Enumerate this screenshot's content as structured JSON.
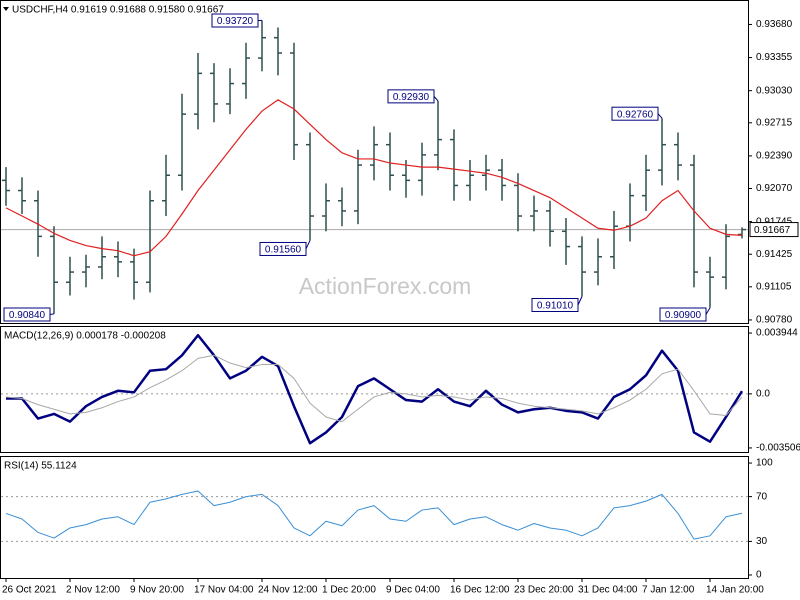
{
  "chart_data": [
    {
      "type": "ohlc",
      "title": "USDCHF,H4 0.91619 0.91688 0.91580 0.91667",
      "watermark": "ActionForex.com",
      "color": "#2f4f4f",
      "categories": [
        "26 Oct 2021",
        null,
        null,
        null,
        "2 Nov 12:00",
        null,
        null,
        null,
        "9 Nov 20:00",
        null,
        null,
        null,
        "17 Nov 04:00",
        null,
        null,
        null,
        "24 Nov 12:00",
        null,
        null,
        null,
        "1 Dec 20:00",
        null,
        null,
        null,
        "9 Dec 04:00",
        null,
        null,
        null,
        "16 Dec 12:00",
        null,
        null,
        null,
        "23 Dec 20:00",
        null,
        null,
        null,
        "31 Dec 04:00",
        null,
        null,
        null,
        "7 Jan 12:00",
        null,
        null,
        null,
        "14 Jan 20:00",
        null,
        null
      ],
      "open": [
        0.9215,
        0.9205,
        0.9195,
        0.916,
        0.9115,
        0.9125,
        0.913,
        0.914,
        0.9135,
        0.9115,
        0.9195,
        0.922,
        0.928,
        0.932,
        0.929,
        0.931,
        0.9335,
        0.9355,
        0.934,
        0.925,
        0.918,
        0.9195,
        0.9185,
        0.923,
        0.925,
        0.922,
        0.9215,
        0.924,
        0.9255,
        0.921,
        0.922,
        0.9225,
        0.921,
        0.918,
        0.9185,
        0.9165,
        0.915,
        0.9125,
        0.914,
        0.917,
        0.92,
        0.9225,
        0.925,
        0.923,
        0.9125,
        0.912,
        0.91619
      ],
      "high": [
        0.9228,
        0.9218,
        0.9205,
        0.917,
        0.914,
        0.9142,
        0.916,
        0.9155,
        0.9148,
        0.9205,
        0.924,
        0.93,
        0.934,
        0.933,
        0.9325,
        0.935,
        0.9372,
        0.9365,
        0.935,
        0.9262,
        0.9212,
        0.9208,
        0.9245,
        0.9268,
        0.9262,
        0.9235,
        0.9252,
        0.9293,
        0.9265,
        0.9235,
        0.924,
        0.9236,
        0.9222,
        0.92,
        0.9195,
        0.9178,
        0.916,
        0.9158,
        0.9185,
        0.9212,
        0.924,
        0.9276,
        0.9262,
        0.924,
        0.914,
        0.9172,
        0.91688
      ],
      "low": [
        0.919,
        0.9182,
        0.914,
        0.9084,
        0.9102,
        0.911,
        0.9118,
        0.912,
        0.9098,
        0.9105,
        0.918,
        0.9205,
        0.9265,
        0.9272,
        0.928,
        0.9295,
        0.9322,
        0.9318,
        0.9235,
        0.9156,
        0.9165,
        0.917,
        0.9172,
        0.9215,
        0.9205,
        0.9198,
        0.92,
        0.9225,
        0.9195,
        0.9195,
        0.9205,
        0.9195,
        0.9165,
        0.9165,
        0.915,
        0.9132,
        0.9101,
        0.9112,
        0.9128,
        0.9155,
        0.9185,
        0.921,
        0.9215,
        0.911,
        0.909,
        0.9108,
        0.9158
      ],
      "close": [
        0.9205,
        0.9195,
        0.916,
        0.9115,
        0.9125,
        0.913,
        0.914,
        0.9135,
        0.9115,
        0.9195,
        0.922,
        0.928,
        0.932,
        0.929,
        0.931,
        0.9335,
        0.9355,
        0.934,
        0.925,
        0.918,
        0.9195,
        0.9185,
        0.923,
        0.925,
        0.922,
        0.9215,
        0.924,
        0.9255,
        0.921,
        0.922,
        0.9225,
        0.921,
        0.918,
        0.9185,
        0.9165,
        0.915,
        0.9125,
        0.914,
        0.917,
        0.92,
        0.9225,
        0.925,
        0.923,
        0.9125,
        0.912,
        0.916,
        0.91667
      ],
      "overlays": [
        {
          "color": "#e02020",
          "values": [
            0.9188,
            0.918,
            0.9172,
            0.9163,
            0.9156,
            0.9151,
            0.9148,
            0.9146,
            0.9141,
            0.9145,
            0.916,
            0.9182,
            0.9205,
            0.9225,
            0.9245,
            0.9265,
            0.9283,
            0.9294,
            0.9285,
            0.927,
            0.9255,
            0.9242,
            0.9236,
            0.9236,
            0.9232,
            0.923,
            0.9228,
            0.9228,
            0.9226,
            0.9224,
            0.9222,
            0.9218,
            0.9212,
            0.9205,
            0.9198,
            0.9188,
            0.9178,
            0.9168,
            0.9166,
            0.917,
            0.9178,
            0.9195,
            0.9205,
            0.9185,
            0.9168,
            0.9162,
            0.9161
          ]
        }
      ],
      "annotations": [
        {
          "value": 0.9372,
          "label": "0.93720"
        },
        {
          "value": 0.9293,
          "label": "0.92930"
        },
        {
          "value": 0.9276,
          "label": "0.92760"
        },
        {
          "value": 0.9156,
          "label": "0.91560"
        },
        {
          "value": 0.9101,
          "label": "0.91010"
        },
        {
          "value": 0.909,
          "label": "0.90900"
        },
        {
          "value": 0.9084,
          "label": "0.90840"
        }
      ],
      "ylim": [
        0.9075,
        0.9392
      ],
      "yticks": [
        {
          "value": 0.9368,
          "label": "0.93680"
        },
        {
          "value": 0.93355,
          "label": "0.93355"
        },
        {
          "value": 0.9303,
          "label": "0.93030"
        },
        {
          "value": 0.92715,
          "label": "0.92715"
        },
        {
          "value": 0.9239,
          "label": "0.92390"
        },
        {
          "value": 0.9207,
          "label": "0.92070"
        },
        {
          "value": 0.91745,
          "label": "0.91745"
        },
        {
          "value": 0.91425,
          "label": "0.91425"
        },
        {
          "value": 0.91105,
          "label": "0.91105"
        },
        {
          "value": 0.9078,
          "label": "0.90780"
        }
      ]
    },
    {
      "type": "line",
      "title": "MACD(12,26,9) 0.000178 -0.000208",
      "series": [
        {
          "color": "#000080",
          "width": 2.5,
          "values": [
            -0.0003,
            -0.0003,
            -0.0016,
            -0.0013,
            -0.0018,
            -0.0008,
            -0.0002,
            0.0002,
            0.0001,
            0.0015,
            0.0016,
            0.0025,
            0.0038,
            0.0025,
            0.001,
            0.0015,
            0.0024,
            0.0018,
            -0.0008,
            -0.0032,
            -0.0025,
            -0.0015,
            0.0005,
            0.001,
            0.0003,
            -0.0004,
            -0.0005,
            0.0003,
            -0.0005,
            -0.0008,
            0.0002,
            -0.0007,
            -0.0012,
            -0.001,
            -0.0009,
            -0.0011,
            -0.0012,
            -0.0016,
            -0.0002,
            0.0003,
            0.0012,
            0.0028,
            0.0015,
            -0.0025,
            -0.0031,
            -0.0015,
            0.000178
          ]
        },
        {
          "color": "#a8a8a8",
          "width": 1,
          "values": [
            -0.0002,
            -0.0003,
            -0.0007,
            -0.001,
            -0.0013,
            -0.0012,
            -0.0009,
            -0.0005,
            -0.0002,
            0.0004,
            0.0009,
            0.0015,
            0.0023,
            0.0025,
            0.002,
            0.0017,
            0.0019,
            0.0019,
            0.001,
            -0.0006,
            -0.0015,
            -0.0018,
            -0.001,
            -0.0002,
            0.0001,
            0.0,
            -0.0002,
            -0.0001,
            -0.0002,
            -0.0004,
            -0.0002,
            -0.0003,
            -0.0006,
            -0.0008,
            -0.0009,
            -0.001,
            -0.0011,
            -0.0013,
            -0.0009,
            -0.0004,
            0.0003,
            0.0013,
            0.0016,
            0.0002,
            -0.0013,
            -0.0014,
            -0.000208
          ]
        }
      ],
      "levels": [
        0
      ],
      "ylim": [
        -0.00377,
        0.0044
      ],
      "yticks": [
        0.003944,
        {
          "value": 0,
          "label": "0.0"
        },
        -0.003506
      ]
    },
    {
      "type": "line",
      "title": "RSI(14) 55.1124",
      "series": [
        {
          "color": "#3a8fd6",
          "width": 1,
          "values": [
            55,
            50,
            38,
            33,
            42,
            45,
            50,
            52,
            45,
            65,
            68,
            72,
            75,
            62,
            65,
            70,
            72,
            62,
            42,
            35,
            48,
            44,
            58,
            62,
            50,
            48,
            58,
            60,
            45,
            50,
            52,
            45,
            40,
            46,
            42,
            40,
            35,
            42,
            60,
            62,
            66,
            72,
            55,
            32,
            35,
            52,
            55.1124
          ]
        }
      ],
      "levels": [
        70,
        30
      ],
      "ylim": [
        -2.7,
        106.3
      ],
      "yticks": [
        100,
        70,
        30,
        0
      ]
    }
  ]
}
